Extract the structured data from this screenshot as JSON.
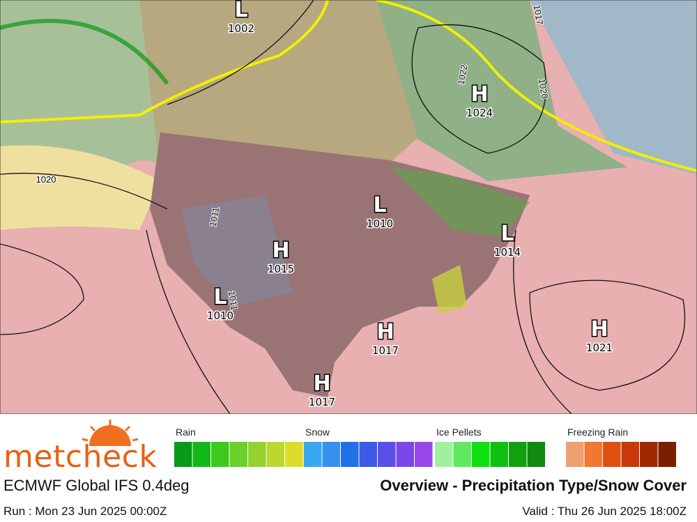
{
  "map": {
    "pressure_centers": [
      {
        "type": "L",
        "value": 1002
      },
      {
        "type": "H",
        "value": 1024
      },
      {
        "type": "L",
        "value": 1010
      },
      {
        "type": "L",
        "value": 1014
      },
      {
        "type": "H",
        "value": 1015
      },
      {
        "type": "L",
        "value": 1010
      },
      {
        "type": "H",
        "value": 1017
      },
      {
        "type": "H",
        "value": 1021
      },
      {
        "type": "H",
        "value": 1017
      }
    ],
    "isobar_labels": [
      1020,
      1017,
      1020,
      1022,
      1011,
      1011
    ]
  },
  "legend": [
    {
      "label": "Rain",
      "colors": [
        "#0a9a1a",
        "#12b81a",
        "#3cc81e",
        "#6ad02a",
        "#96d22e",
        "#bcd82e",
        "#dcdc2c",
        "#e8d830"
      ]
    },
    {
      "label": "Snow",
      "colors": [
        "#38a8f0",
        "#3890f0",
        "#2070e8",
        "#3c5ae8",
        "#5a50e8",
        "#7a48e8",
        "#9848e8"
      ]
    },
    {
      "label": "Ice Pellets",
      "colors": [
        "#a0f0a0",
        "#60e860",
        "#10e010",
        "#10c010",
        "#10a010",
        "#108a10"
      ]
    },
    {
      "label": "Freezing Rain",
      "colors": [
        "#f0a070",
        "#f07830",
        "#e05010",
        "#c83808",
        "#a02800",
        "#7a2000"
      ]
    }
  ],
  "logo": "metcheck",
  "model": "ECMWF Global IFS 0.4deg",
  "title": "Overview - Precipitation Type/Snow Cover",
  "run": "Run : Mon 23 Jun 2025 00:00Z",
  "valid": "Valid : Thu 26 Jun 2025 18:00Z"
}
